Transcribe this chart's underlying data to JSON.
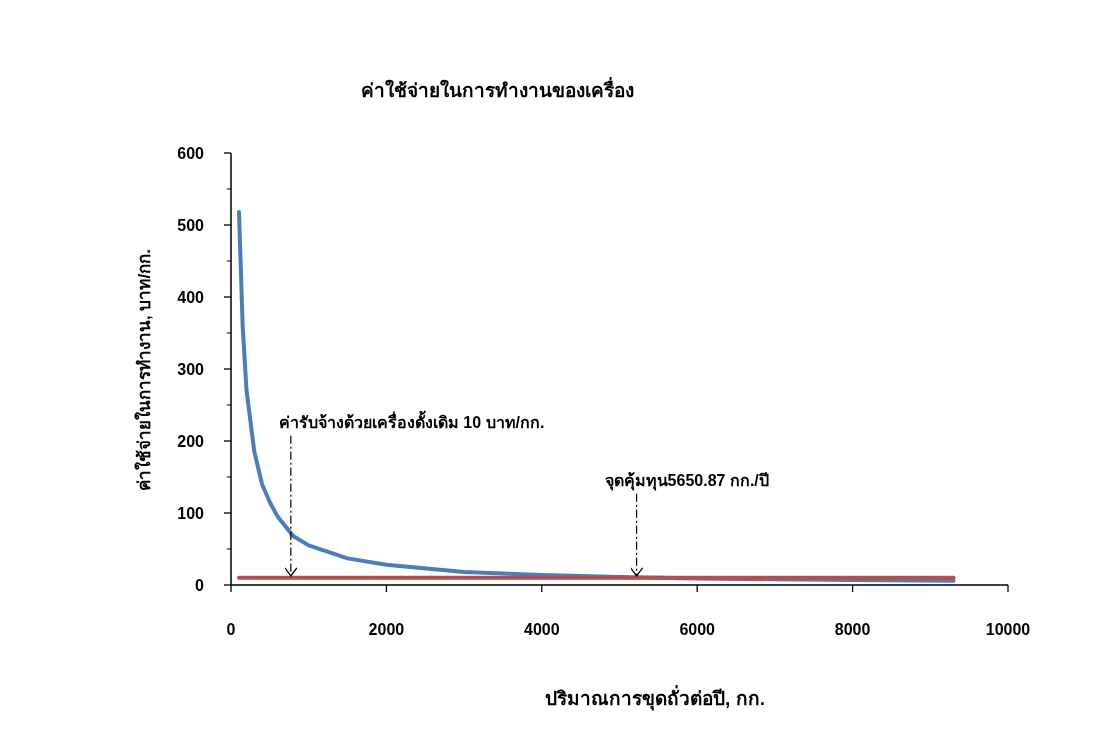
{
  "chart_data": {
    "type": "line",
    "title": "ค่าใช้จ่ายในการทำงานของเครื่อง",
    "xlabel": "ปริมาณการขุดถั่วต่อปี, กก.",
    "ylabel": "ค่าใช้จ่ายในการทำงาน, บาท/กก.",
    "xlim": [
      0,
      10000
    ],
    "xticks": [
      0,
      2000,
      4000,
      6000,
      8000,
      10000
    ],
    "ylim": [
      0,
      600
    ],
    "yticks": [
      0,
      100,
      200,
      300,
      400,
      500,
      600
    ],
    "grid": false,
    "marker": "none",
    "line_style": "solid",
    "series": [
      {
        "color": "#4a7ebb",
        "x": [
          103,
          150,
          200,
          300,
          400,
          500,
          600,
          800,
          1000,
          1500,
          2000,
          3000,
          4000,
          5000,
          6000,
          7000,
          8000,
          9300
        ],
        "values": [
          518,
          360,
          270,
          185,
          140,
          115,
          95,
          68,
          55,
          37,
          28,
          18,
          14,
          11,
          9,
          8,
          7,
          6
        ]
      },
      {
        "color": "#be4b48",
        "x": [
          103,
          9300
        ],
        "values": [
          10,
          10
        ]
      }
    ],
    "annotations": [
      {
        "text": "ค่ารับจ้างด้วยเครื่องดั้งเดิม 10 บาท/กก.",
        "x": 770,
        "y": 10
      },
      {
        "text": "จุดคุ้มทุน5650.87 กก./ปี",
        "x": 5220,
        "y": 10
      }
    ]
  }
}
